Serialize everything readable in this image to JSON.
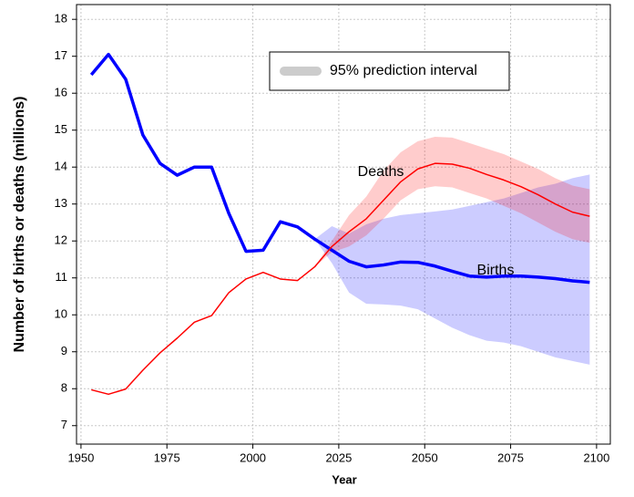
{
  "chart_data": {
    "type": "line",
    "xlabel": "Year",
    "ylabel": "Number of births or deaths (millions)",
    "x": [
      1953,
      1958,
      1963,
      1968,
      1973,
      1978,
      1983,
      1988,
      1993,
      1998,
      2003,
      2008,
      2013,
      2018,
      2023,
      2028,
      2033,
      2038,
      2043,
      2048,
      2053,
      2058,
      2063,
      2068,
      2073,
      2078,
      2083,
      2088,
      2093,
      2098
    ],
    "series": [
      {
        "name": "Births",
        "color": "#0000ff",
        "values": [
          16.5,
          17.05,
          16.38,
          14.87,
          14.1,
          13.78,
          14.0,
          14.0,
          12.75,
          11.72,
          11.75,
          12.52,
          12.38,
          12.05,
          11.75,
          11.45,
          11.3,
          11.35,
          11.43,
          11.42,
          11.32,
          11.18,
          11.05,
          11.02,
          11.05,
          11.05,
          11.02,
          10.98,
          10.92,
          10.88
        ]
      },
      {
        "name": "Deaths",
        "color": "#ff0000",
        "values": [
          7.97,
          7.85,
          7.99,
          8.5,
          8.97,
          9.37,
          9.8,
          9.98,
          10.6,
          10.97,
          11.15,
          10.97,
          10.93,
          11.3,
          11.85,
          12.25,
          12.6,
          13.1,
          13.6,
          13.95,
          14.1,
          14.08,
          13.97,
          13.8,
          13.65,
          13.47,
          13.25,
          13.0,
          12.78,
          12.67
        ]
      }
    ],
    "bands": [
      {
        "color": "#0000ff",
        "lower": [
          null,
          null,
          null,
          null,
          null,
          null,
          null,
          null,
          null,
          null,
          null,
          null,
          null,
          12.05,
          11.4,
          10.6,
          10.3,
          10.28,
          10.25,
          10.15,
          9.9,
          9.65,
          9.45,
          9.3,
          9.25,
          9.15,
          9.0,
          8.85,
          8.75,
          8.65
        ],
        "upper": [
          null,
          null,
          null,
          null,
          null,
          null,
          null,
          null,
          null,
          null,
          null,
          null,
          null,
          12.05,
          12.4,
          12.2,
          12.45,
          12.6,
          12.7,
          12.75,
          12.8,
          12.85,
          12.95,
          13.05,
          13.15,
          13.3,
          13.45,
          13.55,
          13.7,
          13.8
        ]
      },
      {
        "color": "#ff0000",
        "lower": [
          null,
          null,
          null,
          null,
          null,
          null,
          null,
          null,
          null,
          null,
          null,
          null,
          null,
          11.3,
          11.7,
          11.85,
          12.15,
          12.6,
          13.1,
          13.4,
          13.48,
          13.45,
          13.3,
          13.15,
          12.95,
          12.75,
          12.5,
          12.25,
          12.05,
          11.95
        ],
        "upper": [
          null,
          null,
          null,
          null,
          null,
          null,
          null,
          null,
          null,
          null,
          null,
          null,
          null,
          11.3,
          12.0,
          12.7,
          13.2,
          13.9,
          14.4,
          14.7,
          14.82,
          14.8,
          14.65,
          14.5,
          14.35,
          14.15,
          13.95,
          13.7,
          13.5,
          13.4
        ]
      }
    ],
    "legend": {
      "label": "95% prediction interval",
      "color": "#cccccc"
    },
    "xlim": [
      1948.7,
      2104
    ],
    "ylim": [
      6.5,
      18.4
    ],
    "xticks": [
      1950,
      1975,
      2000,
      2025,
      2050,
      2075,
      2100
    ],
    "yticks": [
      7,
      8,
      9,
      10,
      11,
      12,
      13,
      14,
      15,
      16,
      17,
      18
    ],
    "grid": true
  }
}
